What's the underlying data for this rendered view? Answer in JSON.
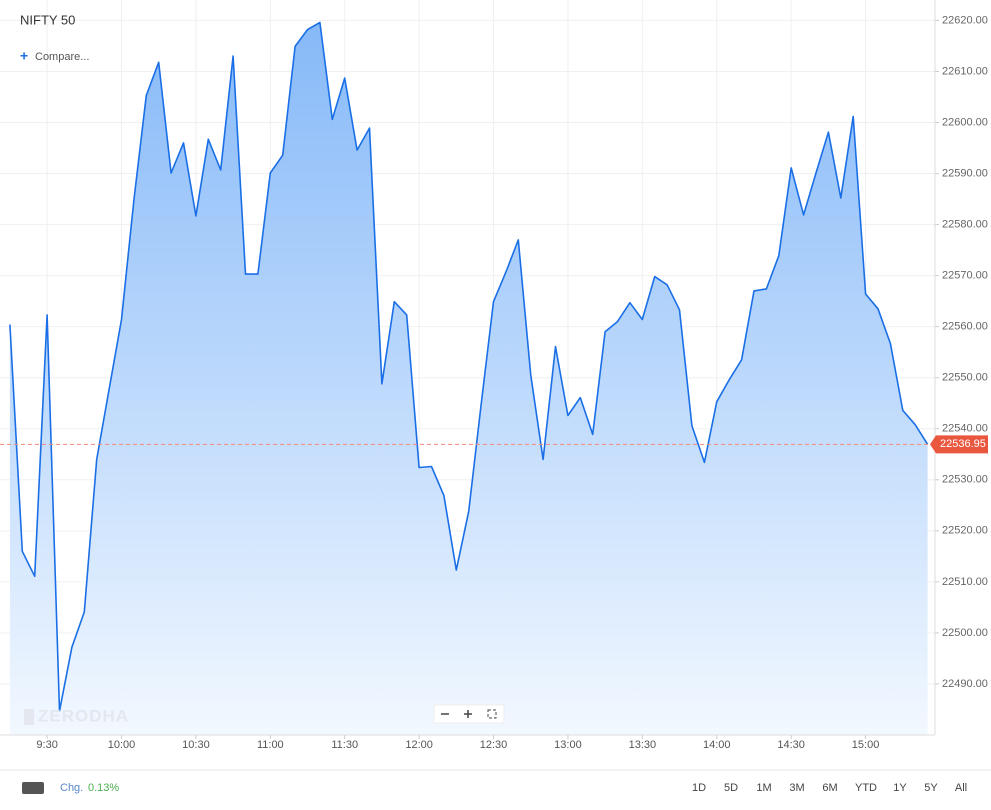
{
  "chart_data": {
    "type": "area",
    "title": "NIFTY 50",
    "color": "#1a6fe6",
    "grid": true,
    "x": [
      "9:15",
      "9:20",
      "9:25",
      "9:30",
      "9:35",
      "9:40",
      "9:45",
      "9:50",
      "9:55",
      "10:00",
      "10:05",
      "10:10",
      "10:15",
      "10:20",
      "10:25",
      "10:30",
      "10:35",
      "10:40",
      "10:45",
      "10:50",
      "10:55",
      "11:00",
      "11:05",
      "11:10",
      "11:15",
      "11:20",
      "11:25",
      "11:30",
      "11:35",
      "11:40",
      "11:45",
      "11:50",
      "11:55",
      "12:00",
      "12:05",
      "12:10",
      "12:15",
      "12:20",
      "12:25",
      "12:30",
      "12:35",
      "12:40",
      "12:45",
      "12:50",
      "12:55",
      "13:00",
      "13:05",
      "13:10",
      "13:15",
      "13:20",
      "13:25",
      "13:30",
      "13:35",
      "13:40",
      "13:45",
      "13:50",
      "13:55",
      "14:00",
      "14:05",
      "14:10",
      "14:15",
      "14:20",
      "14:25",
      "14:30",
      "14:35",
      "14:40",
      "14:45",
      "14:50",
      "14:55",
      "15:00",
      "15:05",
      "15:10",
      "15:15",
      "15:20",
      "15:25"
    ],
    "values": [
      22560.4,
      22516.0,
      22511.1,
      22562.3,
      22484.7,
      22497.2,
      22504.1,
      22534.0,
      22547.7,
      22561.4,
      22584.8,
      22605.3,
      22611.8,
      22590.1,
      22596.0,
      22581.7,
      22596.7,
      22590.7,
      22613.0,
      22570.3,
      22570.3,
      22590.1,
      22593.6,
      22614.9,
      22618.2,
      22619.6,
      22600.6,
      22608.7,
      22594.6,
      22598.9,
      22548.8,
      22564.9,
      22562.3,
      22532.4,
      22532.6,
      22526.9,
      22512.3,
      22523.8,
      22544.7,
      22564.9,
      22570.7,
      22577.0,
      22550.6,
      22534.0,
      22556.1,
      22542.6,
      22546.1,
      22538.9,
      22559.0,
      22561.0,
      22564.7,
      22561.4,
      22569.8,
      22568.2,
      22563.3,
      22540.6,
      22533.4,
      22545.3,
      22549.6,
      22553.5,
      22567.0,
      22567.4,
      22573.9,
      22591.1,
      22581.9,
      22590.1,
      22598.1,
      22585.2,
      22601.2,
      22566.4,
      22563.5,
      22556.7,
      22543.6,
      22540.8,
      22536.95
    ],
    "last_value": 22536.95,
    "xlim": [
      "9:11",
      "15:28"
    ],
    "xticks": [
      "9:30",
      "10:00",
      "10:30",
      "11:00",
      "11:30",
      "12:00",
      "12:30",
      "13:00",
      "13:30",
      "14:00",
      "14:30",
      "15:00"
    ],
    "ylim": [
      22480,
      22624
    ],
    "yticks": [
      {
        "value": 22490,
        "label": "22490.00"
      },
      {
        "value": 22500,
        "label": "22500.00"
      },
      {
        "value": 22510,
        "label": "22510.00"
      },
      {
        "value": 22520,
        "label": "22520.00"
      },
      {
        "value": 22530,
        "label": "22530.00"
      },
      {
        "value": 22540,
        "label": "22540.00"
      },
      {
        "value": 22550,
        "label": "22550.00"
      },
      {
        "value": 22560,
        "label": "22560.00"
      },
      {
        "value": 22570,
        "label": "22570.00"
      },
      {
        "value": 22580,
        "label": "22580.00"
      },
      {
        "value": 22590,
        "label": "22590.00"
      },
      {
        "value": 22600,
        "label": "22600.00"
      },
      {
        "value": 22610,
        "label": "22610.00"
      },
      {
        "value": 22620,
        "label": "22620.00"
      }
    ]
  },
  "ui": {
    "compare": "Compare...",
    "watermark": "ZERODHA",
    "change_label": "Chg.",
    "change_value": "0.13%",
    "ranges": [
      "1D",
      "5D",
      "1M",
      "3M",
      "6M",
      "YTD",
      "1Y",
      "5Y",
      "All"
    ]
  }
}
